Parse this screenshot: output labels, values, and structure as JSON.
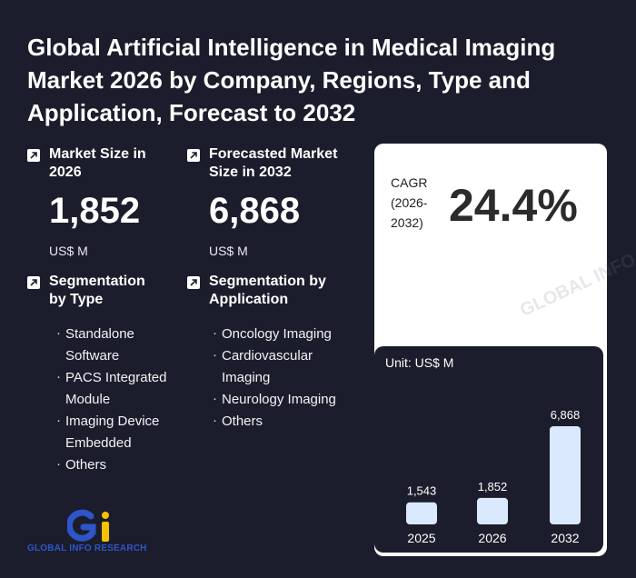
{
  "title": "Global Artificial Intelligence in Medical Imaging Market 2026 by Company, Regions, Type and Application, Forecast to 2032",
  "market_size": {
    "label": "Market Size in 2026",
    "value": "1,852",
    "unit": "US$ M"
  },
  "forecast_size": {
    "label": "Forecasted Market Size in 2032",
    "value": "6,868",
    "unit": "US$ M"
  },
  "cagr": {
    "label": "CAGR (2026-2032)",
    "value": "24.4%"
  },
  "segmentation_type": {
    "label": "Segmentation by Type",
    "items": [
      "Standalone Software",
      "PACS Integrated Module",
      "Imaging Device Embedded",
      "Others"
    ]
  },
  "segmentation_application": {
    "label": "Segmentation by Application",
    "items": [
      "Oncology Imaging",
      "Cardiovascular Imaging",
      "Neurology Imaging",
      "Others"
    ]
  },
  "logo": {
    "text": "GLOBAL INFO RESEARCH",
    "mark": "Gi"
  },
  "watermark_text": "GLOBAL INFO RESEARCH",
  "colors": {
    "background": "#1c1d2c",
    "bar": "#dbe9ff",
    "card": "#ffffff",
    "logo_blue": "#2e55c9",
    "logo_yellow": "#f2c200"
  },
  "chart_data": {
    "type": "bar",
    "unit_label": "Unit: US$ M",
    "categories": [
      "2025",
      "2026",
      "2032"
    ],
    "values": [
      1543,
      1852,
      6868
    ],
    "value_labels": [
      "1,543",
      "1,852",
      "6,868"
    ],
    "ylim": [
      0,
      6868
    ]
  }
}
